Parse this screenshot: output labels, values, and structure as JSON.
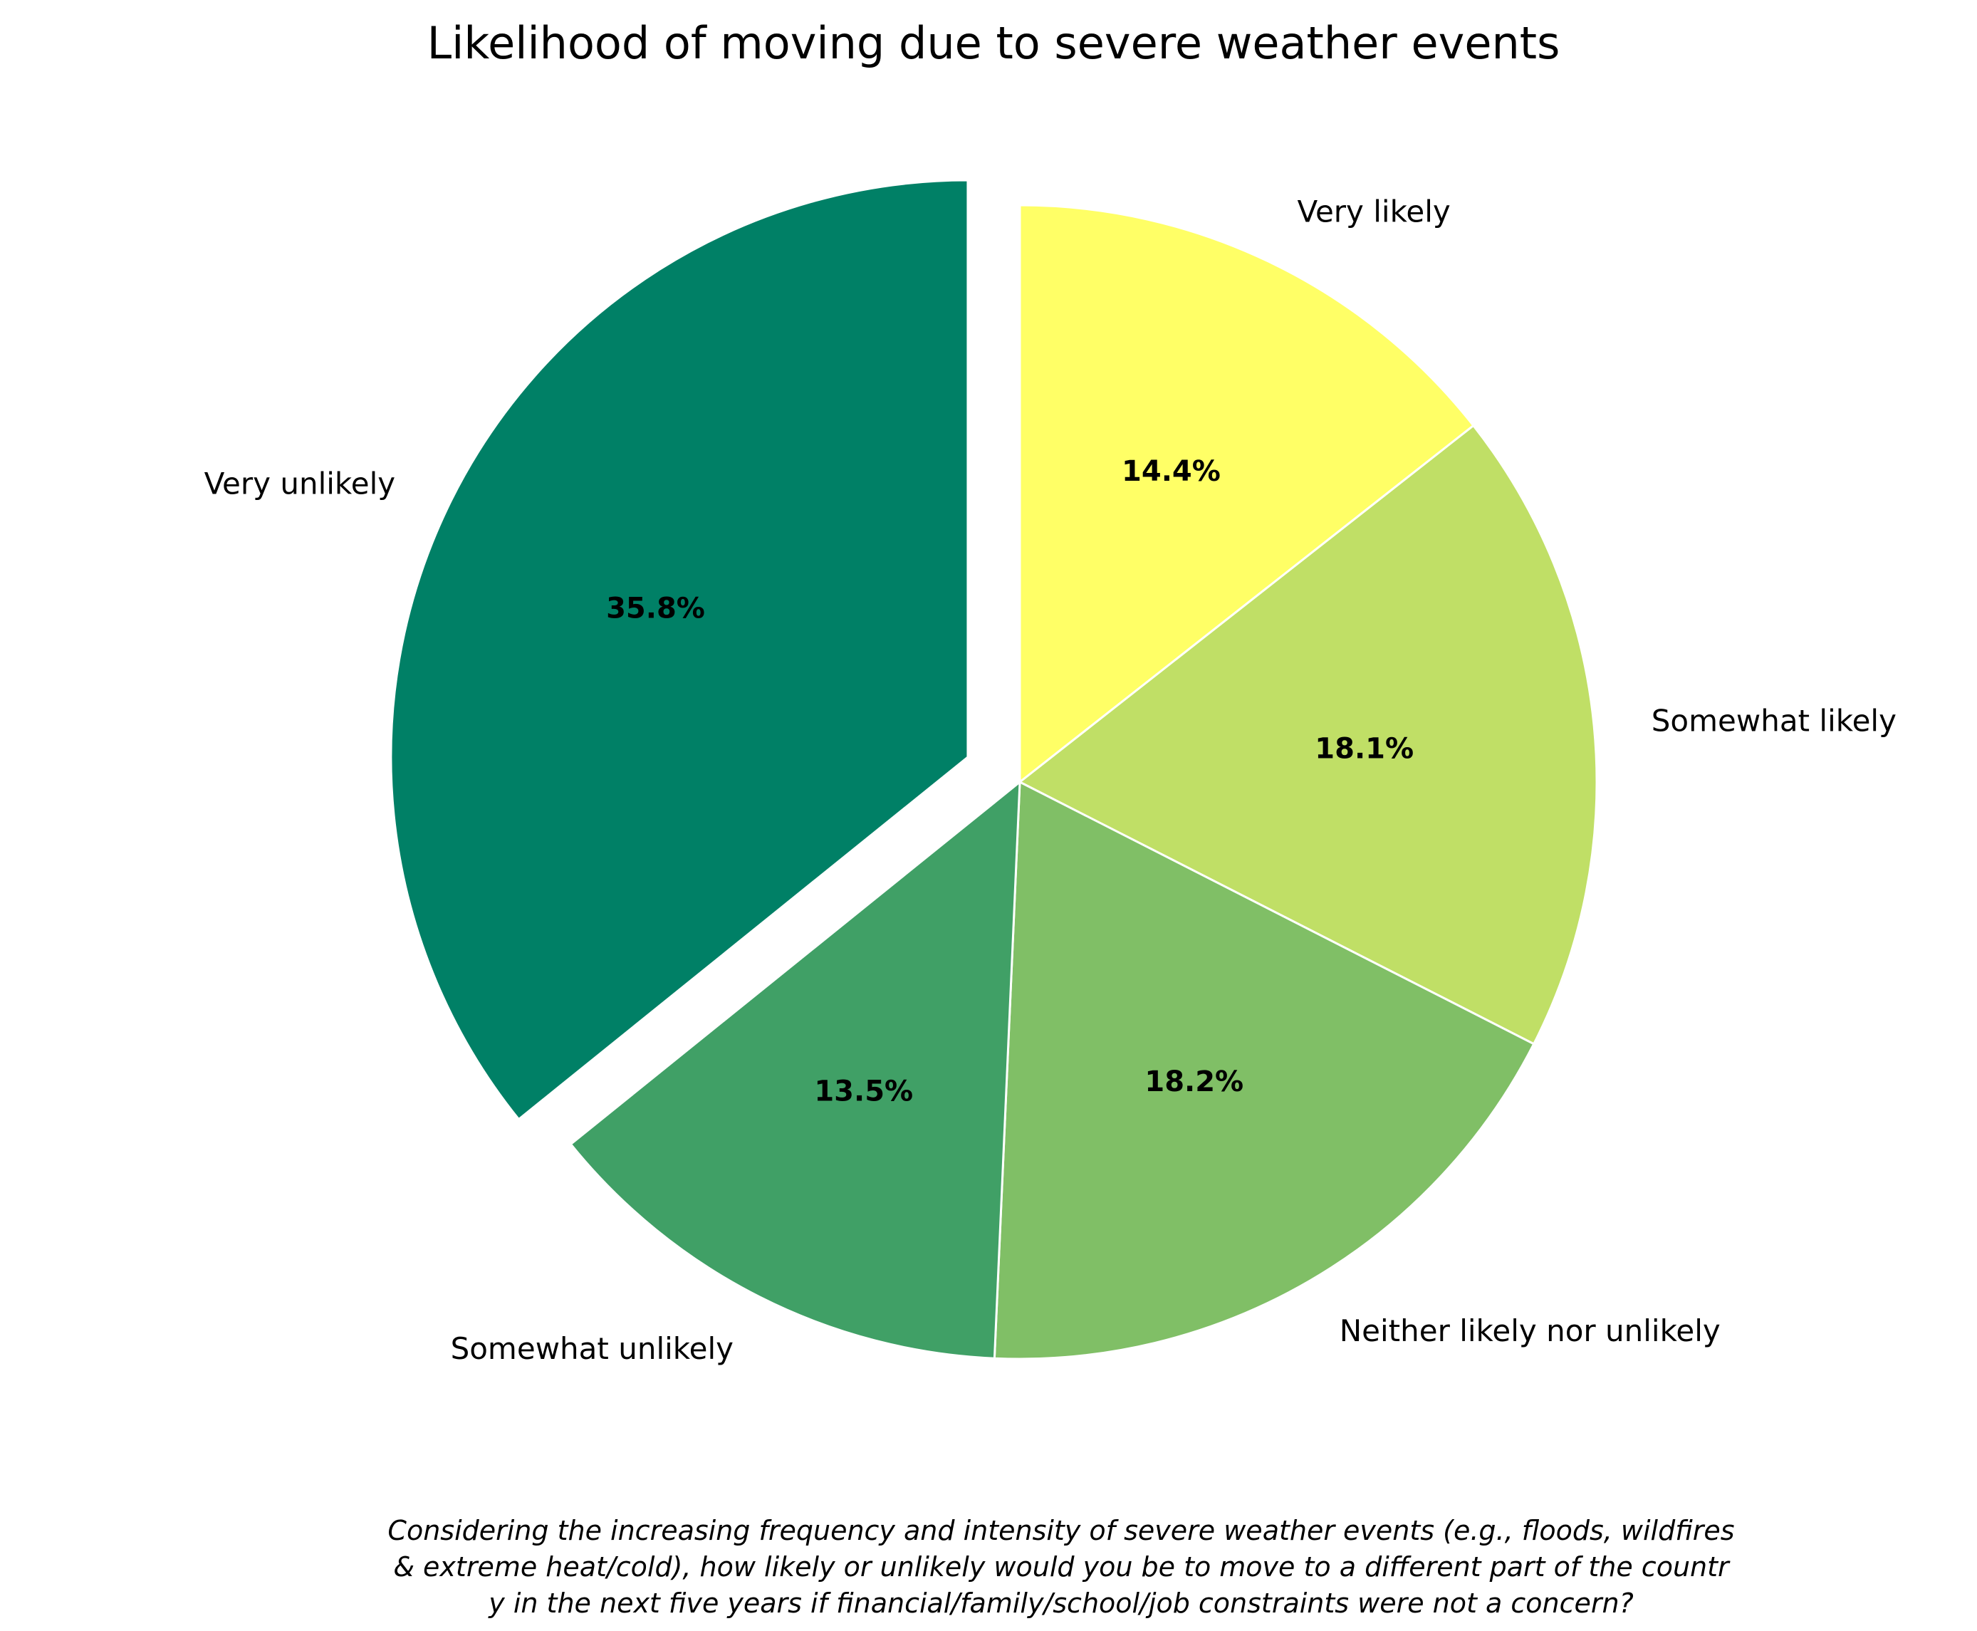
{
  "chart_data": {
    "type": "pie",
    "title": "Likelihood of moving due to severe weather events",
    "categories": [
      "Very likely",
      "Somewhat likely",
      "Neither likely nor unlikely",
      "Somewhat unlikely",
      "Very unlikely"
    ],
    "values": [
      14.4,
      18.1,
      18.2,
      13.5,
      35.8
    ],
    "pct_labels": [
      "14.4%",
      "18.1%",
      "18.2%",
      "13.5%",
      "35.8%"
    ],
    "colors": [
      "#ffff66",
      "#c0df66",
      "#80bf66",
      "#40a066",
      "#008066"
    ],
    "exploded": [
      "Very unlikely"
    ],
    "start_angle_deg": 90,
    "direction": "clockwise",
    "caption_lines": [
      "Considering the increasing frequency and intensity of severe weather events (e.g., floods, wildfires",
      "& extreme heat/cold), how likely or unlikely would you be to move to a different part of the countr",
      "y in the next five years if financial/family/school/job constraints were not a concern?"
    ]
  }
}
